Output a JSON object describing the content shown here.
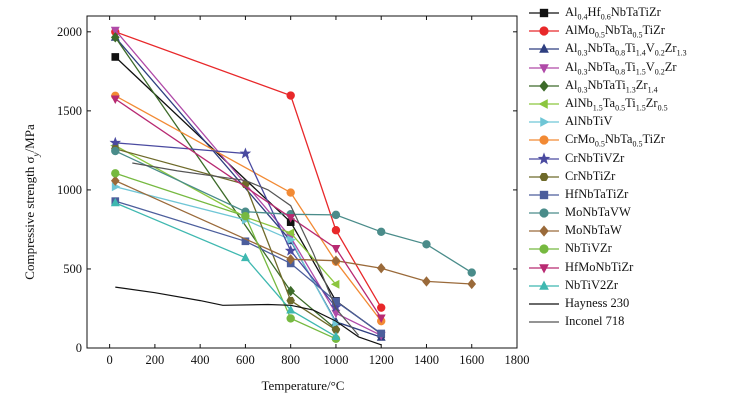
{
  "chart_data": {
    "type": "line",
    "title": "",
    "xlabel": "Temperature/°C",
    "ylabel": "Compressive strength σy/MPa",
    "xlim": [
      -100,
      1800
    ],
    "ylim": [
      0,
      2100
    ],
    "xticks": [
      0,
      200,
      400,
      600,
      800,
      1000,
      1200,
      1400,
      1600,
      1800
    ],
    "yticks": [
      0,
      500,
      1000,
      1500,
      2000
    ],
    "grid": false,
    "legend_position": "right",
    "series": [
      {
        "name": "Al0.4Hf0.6NbTaTiZr",
        "parts": [
          [
            "Al",
            "0.4"
          ],
          [
            "Hf",
            "0.6"
          ],
          [
            "NbTaTiZr",
            ""
          ]
        ],
        "marker": "square",
        "color": "#111111",
        "x": [
          25,
          800,
          1000,
          1200
        ],
        "y": [
          1841,
          796,
          298,
          89
        ]
      },
      {
        "name": "AlMo0.5NbTa0.5TiZr",
        "parts": [
          [
            "AlMo",
            "0.5"
          ],
          [
            "NbTa",
            "0.5"
          ],
          [
            "TiZr",
            ""
          ]
        ],
        "marker": "circle",
        "color": "#e8282a",
        "x": [
          25,
          800,
          1000,
          1200
        ],
        "y": [
          2000,
          1597,
          745,
          255
        ]
      },
      {
        "name": "Al0.3NbTa0.8Ti1.4V0.2Zr1.3",
        "parts": [
          [
            "Al",
            "0.3"
          ],
          [
            "NbTa",
            "0.8"
          ],
          [
            "Ti",
            "1.4"
          ],
          [
            "V",
            "0.2"
          ],
          [
            "Zr",
            "1.3"
          ]
        ],
        "marker": "triangle-up",
        "color": "#2e3f80",
        "x": [
          25,
          800,
          1000,
          1200
        ],
        "y": [
          1965,
          678,
          166,
          68
        ]
      },
      {
        "name": "Al0.3NbTa0.8Ti1.5V0.2Zr",
        "parts": [
          [
            "Al",
            "0.3"
          ],
          [
            "NbTa",
            "0.8"
          ],
          [
            "Ti",
            "1.5"
          ],
          [
            "V",
            "0.2"
          ],
          [
            "Zr",
            ""
          ]
        ],
        "marker": "triangle-down",
        "color": "#b04aa8",
        "x": [
          25,
          800,
          1000,
          1200
        ],
        "y": [
          2010,
          700,
          220,
          80
        ]
      },
      {
        "name": "Al0.3NbTaTi1.3Zr1.4",
        "parts": [
          [
            "Al",
            "0.3"
          ],
          [
            "NbTaTi",
            "1.3"
          ],
          [
            "Zr",
            "1.4"
          ]
        ],
        "marker": "diamond",
        "color": "#3d6b2a",
        "x": [
          25,
          800,
          1000
        ],
        "y": [
          1965,
          360,
          120
        ]
      },
      {
        "name": "AlNb1.5Ta0.5Ti1.5Zr0.5",
        "parts": [
          [
            "AlNb",
            "1.5"
          ],
          [
            "Ta",
            "0.5"
          ],
          [
            "Ti",
            "1.5"
          ],
          [
            "Zr",
            "0.5"
          ]
        ],
        "marker": "triangle-left",
        "color": "#8cc63f",
        "x": [
          25,
          600,
          800,
          1000
        ],
        "y": [
          1280,
          828,
          728,
          403
        ]
      },
      {
        "name": "AlNbTiV",
        "parts": [
          [
            "AlNbTiV",
            ""
          ]
        ],
        "marker": "triangle-right",
        "color": "#6fc6d6",
        "x": [
          25,
          600,
          800,
          1000
        ],
        "y": [
          1020,
          810,
          685,
          158
        ]
      },
      {
        "name": "CrMo0.5NbTa0.5TiZr",
        "parts": [
          [
            "CrMo",
            "0.5"
          ],
          [
            "NbTa",
            "0.5"
          ],
          [
            "TiZr",
            ""
          ]
        ],
        "marker": "circle",
        "color": "#f28a34",
        "x": [
          25,
          800,
          1000,
          1200
        ],
        "y": [
          1595,
          983,
          546,
          170
        ]
      },
      {
        "name": "CrNbTiVZr",
        "parts": [
          [
            "CrNbTiVZr",
            ""
          ]
        ],
        "marker": "star",
        "color": "#4a4aa0",
        "x": [
          25,
          600,
          800,
          1000
        ],
        "y": [
          1298,
          1230,
          615,
          259
        ]
      },
      {
        "name": "CrNbTiZr",
        "parts": [
          [
            "CrNbTiZr",
            ""
          ]
        ],
        "marker": "hexagon",
        "color": "#6e6a2a",
        "x": [
          25,
          600,
          800,
          1000
        ],
        "y": [
          1260,
          1035,
          300,
          115
        ]
      },
      {
        "name": "HfNbTaTiZr",
        "parts": [
          [
            "HfNbTaTiZr",
            ""
          ]
        ],
        "marker": "square",
        "color": "#4c5e9c",
        "x": [
          25,
          600,
          800,
          1000,
          1200
        ],
        "y": [
          929,
          675,
          535,
          295,
          92
        ]
      },
      {
        "name": "MoNbTaVW",
        "parts": [
          [
            "MoNbTaVW",
            ""
          ]
        ],
        "marker": "circle",
        "color": "#4a8c8a",
        "x": [
          25,
          600,
          800,
          1000,
          1200,
          1400,
          1600
        ],
        "y": [
          1246,
          862,
          846,
          842,
          735,
          656,
          477
        ]
      },
      {
        "name": "MoNbTaW",
        "parts": [
          [
            "MoNbTaW",
            ""
          ]
        ],
        "marker": "diamond",
        "color": "#9a6a3a",
        "x": [
          25,
          800,
          1000,
          1200,
          1400,
          1600
        ],
        "y": [
          1058,
          561,
          552,
          505,
          421,
          405
        ]
      },
      {
        "name": "NbTiVZr",
        "parts": [
          [
            "NbTiVZr",
            ""
          ]
        ],
        "marker": "circle",
        "color": "#76b940",
        "x": [
          25,
          600,
          800,
          1000
        ],
        "y": [
          1105,
          834,
          187,
          58
        ]
      },
      {
        "name": "HfMoNbTiZr",
        "parts": [
          [
            "HfMoNbTiZr",
            ""
          ]
        ],
        "marker": "triangle-down",
        "color": "#b82a72",
        "x": [
          25,
          800,
          1000,
          1200
        ],
        "y": [
          1575,
          825,
          630,
          190
        ]
      },
      {
        "name": "NbTiV2Zr",
        "parts": [
          [
            "NbTiV2Zr",
            ""
          ]
        ],
        "marker": "triangle-up",
        "color": "#3fb8b0",
        "x": [
          25,
          600,
          800,
          1000
        ],
        "y": [
          918,
          571,
          240,
          72
        ]
      },
      {
        "name": "Hayness 230",
        "parts": [
          [
            "Hayness 230",
            ""
          ]
        ],
        "marker": "none",
        "color": "#111111",
        "x": [
          25,
          200,
          400,
          500,
          700,
          800,
          900,
          1000,
          1100,
          1200
        ],
        "y": [
          385,
          350,
          300,
          270,
          275,
          270,
          240,
          170,
          70,
          20
        ]
      },
      {
        "name": "Inconel 718",
        "parts": [
          [
            "Inconel 718",
            ""
          ]
        ],
        "marker": "none",
        "color": "#555555",
        "x": [
          100,
          300,
          500,
          600,
          700,
          800,
          900,
          1000,
          1100
        ],
        "y": [
          1170,
          1120,
          1080,
          1060,
          1000,
          900,
          600,
          250,
          80
        ]
      }
    ]
  }
}
